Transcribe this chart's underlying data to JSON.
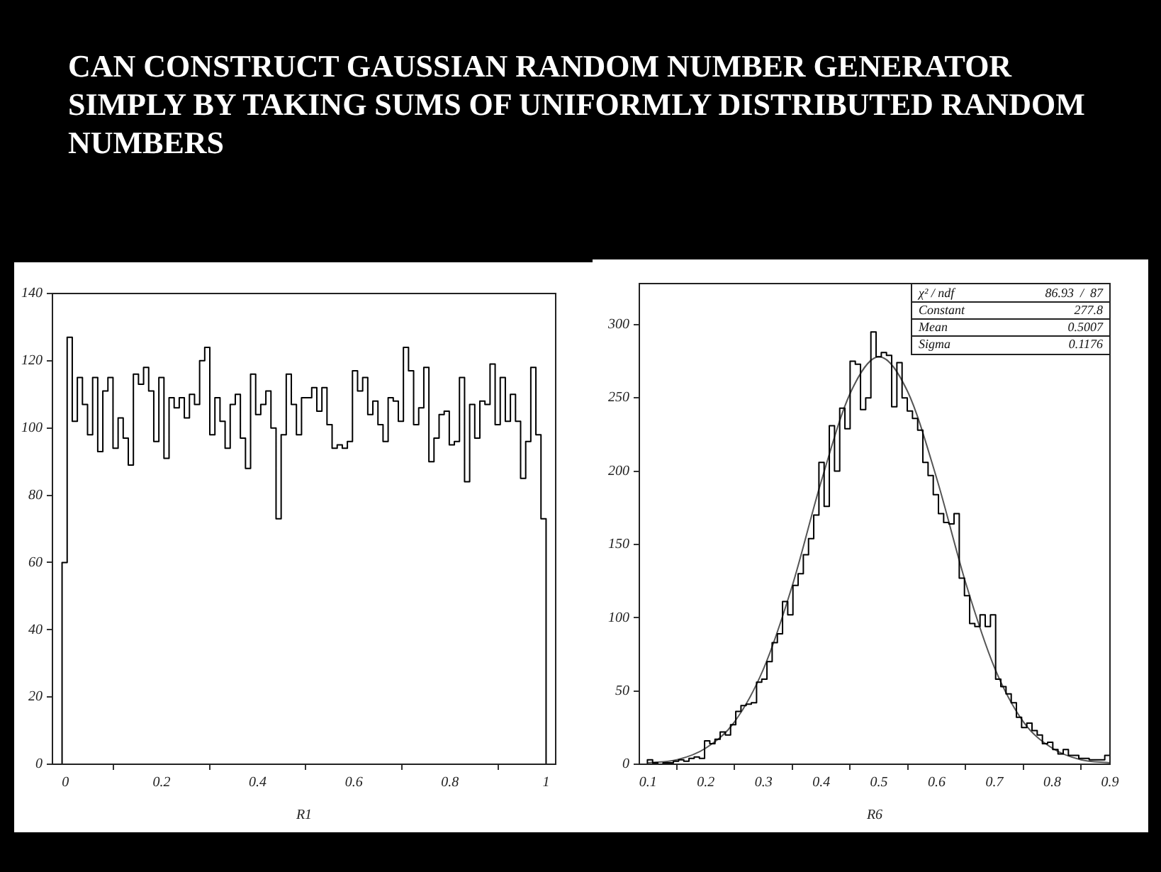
{
  "chart_data": [
    {
      "type": "histogram",
      "title": "CAN CONSTRUCT GAUSSIAN RANDOM NUMBER GENERATOR SIMPLY BY TAKING SUMS OF UNIFORMLY DISTRIBUTED RANDOM NUMBERS",
      "xlabel": "R1",
      "color": "#000000",
      "grid": false,
      "legend": false,
      "bins": [
        -0.007,
        0.0036,
        0.0142,
        0.0248,
        0.0354,
        0.046,
        0.0566,
        0.0672,
        0.0778,
        0.0884,
        0.099,
        0.1096,
        0.1202,
        0.1308,
        0.1414,
        0.152,
        0.1626,
        0.1732,
        0.1838,
        0.1944,
        0.205,
        0.2156,
        0.2262,
        0.2368,
        0.2474,
        0.258,
        0.2686,
        0.2792,
        0.2898,
        0.3004,
        0.311,
        0.3216,
        0.3322,
        0.3428,
        0.3534,
        0.364,
        0.3746,
        0.3852,
        0.3958,
        0.4064,
        0.417,
        0.4276,
        0.4382,
        0.4488,
        0.4594,
        0.47,
        0.4806,
        0.4912,
        0.5018,
        0.5124,
        0.523,
        0.5336,
        0.5442,
        0.5548,
        0.5654,
        0.576,
        0.5866,
        0.5972,
        0.6078,
        0.6184,
        0.629,
        0.6396,
        0.6502,
        0.6608,
        0.6714,
        0.682,
        0.6926,
        0.7032,
        0.7138,
        0.7244,
        0.735,
        0.7456,
        0.7562,
        0.7668,
        0.7774,
        0.788,
        0.7986,
        0.8092,
        0.8198,
        0.8304,
        0.841,
        0.8516,
        0.8622,
        0.8728,
        0.8834,
        0.894,
        0.9046,
        0.9152,
        0.9258,
        0.9364,
        0.947,
        0.9576,
        0.9682,
        0.9788,
        0.9894,
        1.0
      ],
      "values": [
        60,
        127,
        102,
        115,
        107,
        98,
        115,
        93,
        111,
        115,
        94,
        103,
        97,
        89,
        116,
        113,
        118,
        111,
        96,
        115,
        91,
        109,
        106,
        109,
        103,
        110,
        107,
        120,
        124,
        98,
        109,
        102,
        94,
        107,
        110,
        97,
        88,
        116,
        104,
        107,
        111,
        100,
        73,
        98,
        116,
        107,
        98,
        109,
        109,
        112,
        105,
        112,
        101,
        94,
        95,
        94,
        96,
        117,
        111,
        115,
        104,
        108,
        101,
        96,
        109,
        108,
        102,
        124,
        117,
        101,
        106,
        118,
        90,
        97,
        104,
        105,
        95,
        96,
        115,
        84,
        107,
        97,
        108,
        107,
        119,
        101,
        115,
        102,
        110,
        102,
        85,
        96,
        118,
        98,
        73
      ],
      "xlim": [
        -0.027,
        1.02
      ],
      "xticks": [
        0,
        0.2,
        0.4,
        0.6,
        0.8,
        1
      ],
      "ylim": [
        0,
        140
      ],
      "yticks": [
        0,
        20,
        40,
        60,
        80,
        100,
        120,
        140
      ]
    },
    {
      "type": "histogram",
      "xlabel": "R6",
      "grid": false,
      "legend": false,
      "series": [
        {
          "type": "histogram",
          "color": "#000000",
          "bins": [
            0.09,
            0.099,
            0.108,
            0.117,
            0.126,
            0.135,
            0.144,
            0.153,
            0.162,
            0.171,
            0.18,
            0.189,
            0.198,
            0.207,
            0.216,
            0.225,
            0.234,
            0.243,
            0.252,
            0.261,
            0.27,
            0.279,
            0.288,
            0.297,
            0.306,
            0.315,
            0.324,
            0.333,
            0.342,
            0.351,
            0.36,
            0.369,
            0.378,
            0.387,
            0.396,
            0.405,
            0.414,
            0.423,
            0.432,
            0.441,
            0.45,
            0.459,
            0.468,
            0.477,
            0.486,
            0.495,
            0.504,
            0.513,
            0.522,
            0.531,
            0.54,
            0.549,
            0.558,
            0.567,
            0.576,
            0.585,
            0.594,
            0.603,
            0.612,
            0.621,
            0.63,
            0.639,
            0.648,
            0.657,
            0.666,
            0.675,
            0.684,
            0.693,
            0.702,
            0.711,
            0.72,
            0.729,
            0.738,
            0.747,
            0.756,
            0.765,
            0.774,
            0.783,
            0.792,
            0.801,
            0.81,
            0.819,
            0.828,
            0.837,
            0.846,
            0.855,
            0.864,
            0.873,
            0.882,
            0.891,
            0.9
          ],
          "values": [
            0,
            3,
            1,
            0,
            1,
            1,
            2,
            3,
            2,
            4,
            5,
            4,
            16,
            14,
            17,
            22,
            20,
            27,
            36,
            40,
            41,
            42,
            56,
            58,
            70,
            83,
            89,
            111,
            102,
            122,
            130,
            143,
            154,
            170,
            206,
            176,
            231,
            200,
            243,
            229,
            275,
            273,
            242,
            250,
            295,
            278,
            281,
            279,
            244,
            274,
            250,
            241,
            236,
            228,
            206,
            197,
            184,
            171,
            165,
            164,
            171,
            127,
            115,
            96,
            94,
            102,
            94,
            102,
            58,
            53,
            48,
            42,
            32,
            25,
            28,
            23,
            20,
            14,
            15,
            10,
            7,
            10,
            6,
            6,
            4,
            4,
            3,
            3,
            3,
            6
          ]
        },
        {
          "type": "line",
          "color": "#555555",
          "x": [
            0.1,
            0.15,
            0.2,
            0.25,
            0.3,
            0.35,
            0.4,
            0.45,
            0.5,
            0.55,
            0.6,
            0.65,
            0.7,
            0.75,
            0.8,
            0.85,
            0.9
          ],
          "values": [
            1,
            3,
            11,
            29,
            65,
            122,
            193,
            253,
            278,
            254,
            195,
            124,
            66,
            29,
            11,
            3,
            1
          ]
        }
      ],
      "annotations": [
        "χ² / ndf",
        "86.93  /  87",
        "Constant",
        "277.8",
        "Mean",
        "0.5007",
        "Sigma",
        "0.1176"
      ],
      "xlim": [
        0.085,
        0.9
      ],
      "xticks": [
        0.1,
        0.2,
        0.3,
        0.4,
        0.5,
        0.6,
        0.7,
        0.8,
        0.9
      ],
      "ylim": [
        0,
        328
      ],
      "yticks": [
        0,
        50,
        100,
        150,
        200,
        250,
        300
      ]
    }
  ]
}
